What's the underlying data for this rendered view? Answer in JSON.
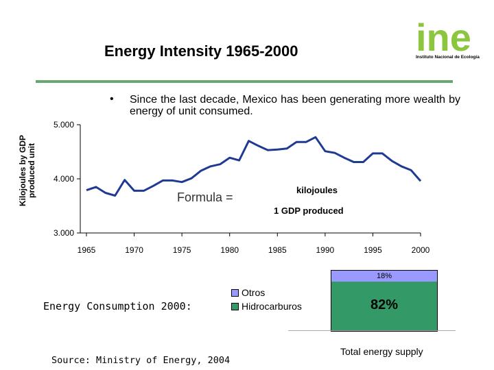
{
  "slide": {
    "title": "Energy Intensity 1965-2000",
    "bullet": "Since the last decade, Mexico has been generating more wealth by energy of unit consumed.",
    "source": "Source: Ministry of Energy, 2004",
    "accent_color": "#66a870"
  },
  "logo": {
    "text": "ine",
    "caption": "Instituto Nacional de Ecología",
    "color": "#8cc63f"
  },
  "formula": {
    "label": "Formula =",
    "numerator": "kilojoules",
    "denominator": "1 GDP produced"
  },
  "chart_data": [
    {
      "type": "line",
      "title": "Energy Intensity 1965-2000",
      "xlabel": "",
      "ylabel": "Kilojoules by GDP produced unit",
      "x": [
        1965,
        1966,
        1967,
        1968,
        1969,
        1970,
        1971,
        1972,
        1973,
        1974,
        1975,
        1976,
        1977,
        1978,
        1979,
        1980,
        1981,
        1982,
        1983,
        1984,
        1985,
        1986,
        1987,
        1988,
        1989,
        1990,
        1991,
        1992,
        1993,
        1994,
        1995,
        1996,
        1997,
        1998,
        1999,
        2000
      ],
      "y": [
        3.79,
        3.85,
        3.74,
        3.69,
        3.98,
        3.78,
        3.78,
        3.87,
        3.97,
        3.97,
        3.94,
        4.01,
        4.15,
        4.23,
        4.27,
        4.39,
        4.34,
        4.7,
        4.61,
        4.53,
        4.54,
        4.56,
        4.68,
        4.68,
        4.77,
        4.51,
        4.48,
        4.39,
        4.31,
        4.31,
        4.47,
        4.47,
        4.33,
        4.23,
        4.16,
        3.96
      ],
      "xlim": [
        1965,
        2000
      ],
      "ylim": [
        3.0,
        5.0
      ],
      "xticks": [
        "1965",
        "1970",
        "1975",
        "1980",
        "1985",
        "1990",
        "1995",
        "2000"
      ],
      "yticks": [
        "3.000",
        "4.000",
        "5.000"
      ],
      "line_color": "#1f3a93"
    },
    {
      "type": "bar",
      "title": "Energy Consumption 2000:",
      "caption": "Total energy supply",
      "categories": [
        "Total energy supply"
      ],
      "series": [
        {
          "name": "Otros",
          "value": 18,
          "label": "18%",
          "color": "#9999ff"
        },
        {
          "name": "Hidrocarburos",
          "value": 82,
          "label": "82%",
          "color": "#339966"
        }
      ]
    }
  ]
}
